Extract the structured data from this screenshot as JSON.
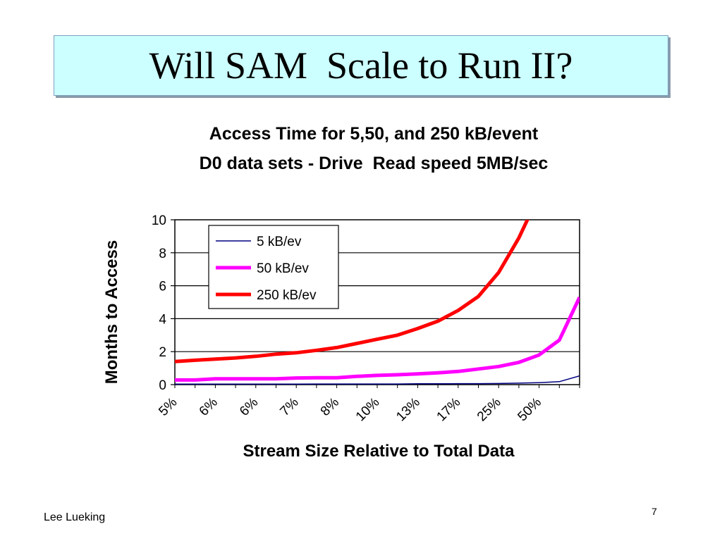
{
  "slide": {
    "title": "Will SAM  Scale to Run II?",
    "author": "Lee Lueking",
    "page_number": "7"
  },
  "chart_data": {
    "type": "line",
    "title_lines": [
      "Access Time for 5,50, and 250 kB/event",
      "D0 data sets - Drive  Read speed 5MB/sec"
    ],
    "xlabel": "Stream Size Relative to Total Data",
    "ylabel": "Months to Access",
    "ylim": [
      0,
      10
    ],
    "yticks": [
      0,
      2,
      4,
      6,
      8,
      10
    ],
    "grid": true,
    "legend_position": "top-left",
    "x_tick_labels": [
      "5%",
      "6%",
      "6%",
      "7%",
      "8%",
      "10%",
      "13%",
      "17%",
      "25%",
      "50%"
    ],
    "series": [
      {
        "name": "5 kB/ev",
        "color": "#000080",
        "values": [
          0.03,
          0.03,
          0.03,
          0.03,
          0.03,
          0.03,
          0.03,
          0.04,
          0.04,
          0.04,
          0.04,
          0.04,
          0.05,
          0.05,
          0.06,
          0.06,
          0.07,
          0.09,
          0.12,
          0.18,
          0.53
        ]
      },
      {
        "name": "50 kB/ev",
        "color": "#ff00ff",
        "values": [
          0.28,
          0.28,
          0.35,
          0.35,
          0.35,
          0.35,
          0.4,
          0.42,
          0.42,
          0.5,
          0.56,
          0.6,
          0.65,
          0.72,
          0.8,
          0.95,
          1.1,
          1.35,
          1.8,
          2.7,
          5.3
        ]
      },
      {
        "name": "250 kB/ev",
        "color": "#ff0000",
        "values": [
          1.4,
          1.48,
          1.55,
          1.62,
          1.72,
          1.85,
          1.93,
          2.08,
          2.25,
          2.5,
          2.75,
          3.0,
          3.4,
          3.85,
          4.5,
          5.35,
          6.8,
          8.9,
          11.5,
          null,
          null
        ]
      }
    ]
  }
}
